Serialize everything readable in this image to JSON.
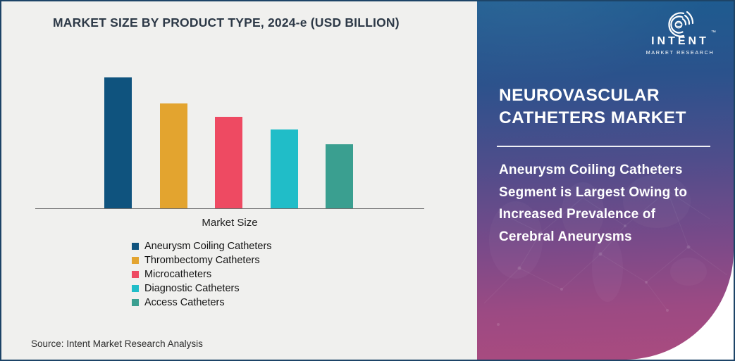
{
  "chart": {
    "title": "MARKET SIZE BY PRODUCT TYPE, 2024-e (USD BILLION)",
    "xlabel": "Market Size",
    "source": "Source: Intent Market Research Analysis"
  },
  "chart_data": {
    "type": "bar",
    "title": "MARKET SIZE BY PRODUCT TYPE, 2024-e (USD BILLION)",
    "unit": "USD Billion",
    "xlabel": "Market Size",
    "categories": [
      "Aneurysm Coiling Catheters",
      "Thrombectomy Catheters",
      "Microcatheters",
      "Diagnostic Catheters",
      "Access Catheters"
    ],
    "values": [
      1.0,
      0.8,
      0.7,
      0.6,
      0.49
    ],
    "values_note": "bars carry no numeric labels; values are relative bar heights normalized to tallest bar",
    "colors": [
      "#0f537e",
      "#e3a42f",
      "#ee4a62",
      "#20bdc8",
      "#3a9f90"
    ],
    "legend_position": "bottom",
    "grid": false,
    "value_labels_shown": false
  },
  "panel": {
    "title": "NEUROVASCULAR CATHETERS MARKET",
    "description": "Aneurysm Coiling Catheters Segment is Largest Owing to Increased Prevalence of Cerebral Aneurysms",
    "logo": {
      "word": "INTENT",
      "tm": "™",
      "subtitle": "MARKET RESEARCH",
      "icon": "signal-arcs-icon"
    },
    "colors": {
      "gradient_top": "#1d5c90",
      "gradient_bottom": "#aa4b7f",
      "text": "#ffffff"
    }
  },
  "frame": {
    "border_color": "#1d4467",
    "chart_bg": "#f0f0ee"
  }
}
